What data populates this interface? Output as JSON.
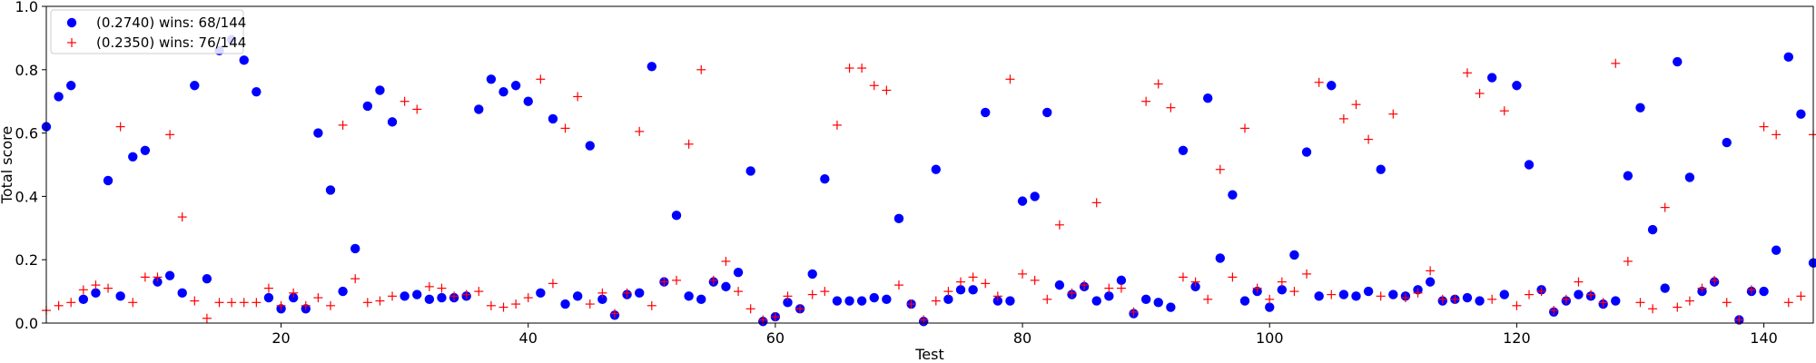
{
  "chart_data": {
    "type": "scatter",
    "title": "",
    "xlabel": "Test",
    "ylabel": "Total score",
    "xlim": [
      1,
      144
    ],
    "ylim": [
      0,
      1.0
    ],
    "xticks": [
      20,
      40,
      60,
      80,
      100,
      120,
      140
    ],
    "yticks": [
      0.0,
      0.2,
      0.4,
      0.6,
      0.8,
      1.0
    ],
    "ytick_labels": [
      "0.0",
      "0.2",
      "0.4",
      "0.6",
      "0.8",
      "1.0"
    ],
    "grid": false,
    "legend_position": "top-left",
    "series": [
      {
        "name": "(0.2740) wins: 68/144",
        "marker": "circle",
        "color": "#0000ff",
        "values": [
          0.62,
          0.715,
          0.75,
          0.075,
          0.095,
          0.45,
          0.085,
          0.525,
          0.545,
          0.13,
          0.15,
          0.095,
          0.75,
          0.14,
          0.86,
          0.895,
          0.83,
          0.73,
          0.08,
          0.045,
          0.08,
          0.045,
          0.6,
          0.42,
          0.1,
          0.235,
          0.685,
          0.735,
          0.635,
          0.085,
          0.09,
          0.075,
          0.08,
          0.08,
          0.085,
          0.675,
          0.77,
          0.73,
          0.75,
          0.7,
          0.095,
          0.645,
          0.06,
          0.085,
          0.56,
          0.075,
          0.025,
          0.09,
          0.095,
          0.81,
          0.13,
          0.34,
          0.085,
          0.075,
          0.13,
          0.115,
          0.16,
          0.48,
          0.005,
          0.02,
          0.065,
          0.045,
          0.155,
          0.455,
          0.07,
          0.07,
          0.07,
          0.08,
          0.075,
          0.33,
          0.06,
          0.005,
          0.485,
          0.075,
          0.105,
          0.105,
          0.665,
          0.07,
          0.07,
          0.385,
          0.4,
          0.665,
          0.12,
          0.09,
          0.115,
          0.07,
          0.085,
          0.135,
          0.03,
          0.075,
          0.065,
          0.05,
          0.545,
          0.115,
          0.71,
          0.205,
          0.405,
          0.07,
          0.1,
          0.05,
          0.105,
          0.215,
          0.54,
          0.085,
          0.75,
          0.09,
          0.085,
          0.1,
          0.485,
          0.09,
          0.085,
          0.105,
          0.13,
          0.07,
          0.075,
          0.08,
          0.07,
          0.775,
          0.09,
          0.75,
          0.5,
          0.105,
          0.035,
          0.07,
          0.09,
          0.085,
          0.06,
          0.07,
          0.465,
          0.68,
          0.295,
          0.11,
          0.825,
          0.46,
          0.1,
          0.13,
          0.57,
          0.01,
          0.1,
          0.1,
          0.23,
          0.84,
          0.66,
          0.19
        ]
      },
      {
        "name": "(0.2350) wins: 76/144",
        "marker": "plus",
        "color": "#ff0000",
        "values": [
          0.04,
          0.055,
          0.065,
          0.105,
          0.12,
          0.11,
          0.62,
          0.065,
          0.145,
          0.145,
          0.595,
          0.335,
          0.07,
          0.015,
          0.065,
          0.065,
          0.065,
          0.065,
          0.11,
          0.055,
          0.095,
          0.055,
          0.08,
          0.055,
          0.625,
          0.14,
          0.065,
          0.07,
          0.085,
          0.7,
          0.675,
          0.115,
          0.11,
          0.085,
          0.09,
          0.1,
          0.055,
          0.05,
          0.06,
          0.08,
          0.77,
          0.125,
          0.615,
          0.715,
          0.06,
          0.095,
          0.03,
          0.095,
          0.605,
          0.055,
          0.13,
          0.135,
          0.565,
          0.8,
          0.135,
          0.195,
          0.1,
          0.045,
          0.01,
          0.02,
          0.085,
          0.045,
          0.09,
          0.1,
          0.625,
          0.805,
          0.805,
          0.75,
          0.735,
          0.12,
          0.06,
          0.01,
          0.07,
          0.1,
          0.13,
          0.145,
          0.125,
          0.085,
          0.77,
          0.155,
          0.135,
          0.075,
          0.31,
          0.095,
          0.12,
          0.38,
          0.11,
          0.11,
          0.035,
          0.7,
          0.755,
          0.68,
          0.145,
          0.13,
          0.075,
          0.485,
          0.145,
          0.615,
          0.11,
          0.075,
          0.13,
          0.1,
          0.155,
          0.76,
          0.09,
          0.645,
          0.69,
          0.58,
          0.085,
          0.66,
          0.08,
          0.095,
          0.165,
          0.075,
          0.075,
          0.79,
          0.725,
          0.075,
          0.67,
          0.055,
          0.09,
          0.1,
          0.04,
          0.075,
          0.13,
          0.09,
          0.065,
          0.82,
          0.195,
          0.065,
          0.045,
          0.365,
          0.05,
          0.07,
          0.11,
          0.135,
          0.065,
          0.01,
          0.105,
          0.62,
          0.595,
          0.065,
          0.085,
          0.595
        ]
      }
    ]
  }
}
